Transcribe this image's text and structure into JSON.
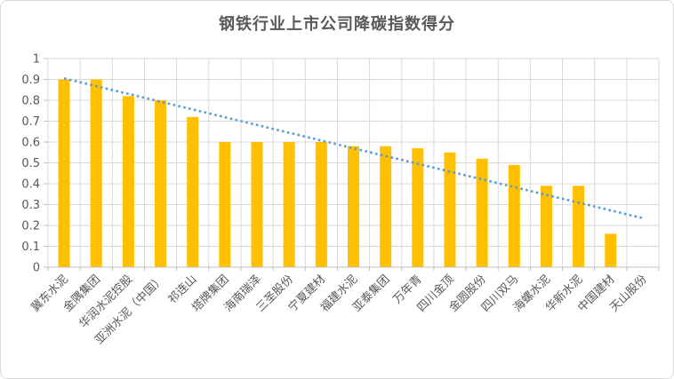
{
  "chart_data": {
    "type": "bar",
    "title": "钢铁行业上市公司降碳指数得分",
    "categories": [
      "冀东水泥",
      "金隅集团",
      "华润水泥控股",
      "亚洲水泥（中国）",
      "祁连山",
      "塔牌集团",
      "海南瑞泽",
      "三圣股份",
      "宁夏建材",
      "福建水泥",
      "亚泰集团",
      "万年青",
      "四川金顶",
      "金圆股份",
      "四川双马",
      "海螺水泥",
      "华新水泥",
      "中国建材",
      "天山股份"
    ],
    "values": [
      0.9,
      0.9,
      0.82,
      0.8,
      0.72,
      0.6,
      0.6,
      0.6,
      0.6,
      0.58,
      0.58,
      0.57,
      0.55,
      0.52,
      0.49,
      0.39,
      0.39,
      0.16,
      0
    ],
    "xlabel": "",
    "ylabel": "",
    "ylim": [
      0,
      1
    ],
    "y_tick_labels": [
      "0",
      "0.1",
      "0.2",
      "0.3",
      "0.4",
      "0.5",
      "0.6",
      "0.7",
      "0.8",
      "0.9",
      "1"
    ],
    "grid": true,
    "legend_position": "none",
    "trendline": {
      "style": "dotted",
      "start_value": 0.905,
      "end_value": 0.235
    }
  },
  "colors": {
    "bar": "#FFC000",
    "trendline": "#5B9BD5",
    "gridline": "#D9D9D9",
    "axis_line": "#BFBFBF",
    "axis_text": "#595959",
    "title_text": "#595959",
    "frame_border": "#D9D9D9",
    "background": "#FFFFFF"
  }
}
